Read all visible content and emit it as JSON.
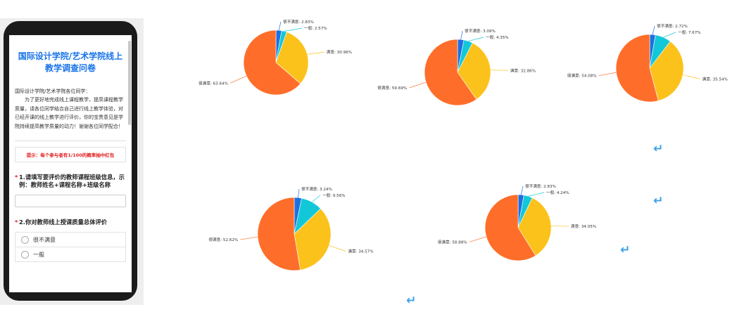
{
  "survey": {
    "title": "国际设计学院/艺术学院线上教学调查问卷",
    "greeting": "国际设计学院/艺术学院各位同学：",
    "intro": "为了更好地完成线上课程教学，提高课程教学质量，请各位同学结合自己进行线上教学体验，对已经开课的线上教学进行评价，你的宝贵意见是学院持续提高教学质量的动力！谢谢各位同学配合！",
    "tip": "提示：每个参与者有1/100的概率抽中红包",
    "q1": "1.请填写要评价的教师课程班级信息，示例：教师姓名+课程名称+班级名称",
    "q2": "2.你对教师线上授课质量总体评价",
    "options": [
      "很不满意",
      "一般"
    ],
    "required_mark": "*"
  },
  "return_symbol": "↵",
  "chart_data": [
    {
      "type": "pie",
      "slices": [
        {
          "label": "很不满意",
          "value": 2.83,
          "text": "很不满意: 2.83%",
          "color": "#1e6fe0"
        },
        {
          "label": "一般",
          "value": 2.57,
          "text": "一般: 2.57%",
          "color": "#12c8d8"
        },
        {
          "label": "满意",
          "value": 30.96,
          "text": "满意: 30.96%",
          "color": "#fcc21c"
        },
        {
          "label": "很满意",
          "value": 63.64,
          "text": "很满意: 63.64%",
          "color": "#fe6e2a"
        }
      ]
    },
    {
      "type": "pie",
      "slices": [
        {
          "label": "很不满意",
          "value": 3.09,
          "text": "很不满意: 3.09%",
          "color": "#1e6fe0"
        },
        {
          "label": "一般",
          "value": 4.35,
          "text": "一般: 4.35%",
          "color": "#12c8d8"
        },
        {
          "label": "满意",
          "value": 32.86,
          "text": "满意: 32.86%",
          "color": "#fcc21c"
        },
        {
          "label": "很满意",
          "value": 59.69,
          "text": "很满意: 59.69%",
          "color": "#fe6e2a"
        }
      ]
    },
    {
      "type": "pie",
      "slices": [
        {
          "label": "很不满意",
          "value": 2.72,
          "text": "很不满意: 2.72%",
          "color": "#1e6fe0"
        },
        {
          "label": "一般",
          "value": 7.67,
          "text": "一般: 7.67%",
          "color": "#12c8d8"
        },
        {
          "label": "满意",
          "value": 35.54,
          "text": "满意: 35.54%",
          "color": "#fcc21c"
        },
        {
          "label": "很满意",
          "value": 54.08,
          "text": "很满意: 54.08%",
          "color": "#fe6e2a"
        }
      ]
    },
    {
      "type": "pie",
      "slices": [
        {
          "label": "很不满意",
          "value": 3.24,
          "text": "很不满意: 3.24%",
          "color": "#1e6fe0"
        },
        {
          "label": "一般",
          "value": 9.56,
          "text": "一般: 9.56%",
          "color": "#12c8d8"
        },
        {
          "label": "满意",
          "value": 34.57,
          "text": "满意: 34.57%",
          "color": "#fcc21c"
        },
        {
          "label": "很满意",
          "value": 52.62,
          "text": "很满意: 52.62%",
          "color": "#fe6e2a"
        }
      ]
    },
    {
      "type": "pie",
      "slices": [
        {
          "label": "很不满意",
          "value": 2.83,
          "text": "很不满意: 2.83%",
          "color": "#1e6fe0"
        },
        {
          "label": "一般",
          "value": 4.24,
          "text": "一般: 4.24%",
          "color": "#12c8d8"
        },
        {
          "label": "满意",
          "value": 34.05,
          "text": "满意: 34.05%",
          "color": "#fcc21c"
        },
        {
          "label": "很满意",
          "value": 58.88,
          "text": "很满意: 58.88%",
          "color": "#fe6e2a"
        }
      ]
    }
  ]
}
